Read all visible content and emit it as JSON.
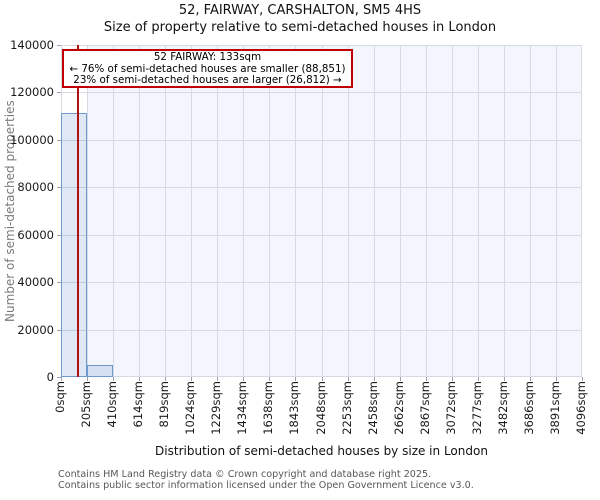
{
  "chart_data": {
    "type": "bar",
    "title": "52, FAIRWAY, CARSHALTON, SM5 4HS",
    "subtitle": "Size of property relative to semi-detached houses in London",
    "xlabel": "Distribution of semi-detached houses by size in London",
    "ylabel": "Number of semi-detached properties",
    "categories": [
      "0sqm",
      "205sqm",
      "410sqm",
      "614sqm",
      "819sqm",
      "1024sqm",
      "1229sqm",
      "1434sqm",
      "1638sqm",
      "1843sqm",
      "2048sqm",
      "2253sqm",
      "2458sqm",
      "2662sqm",
      "2867sqm",
      "3072sqm",
      "3277sqm",
      "3482sqm",
      "3686sqm",
      "3891sqm",
      "4096sqm"
    ],
    "values": [
      111400,
      5000,
      0,
      0,
      0,
      0,
      0,
      0,
      0,
      0,
      0,
      0,
      0,
      0,
      0,
      0,
      0,
      0,
      0,
      0
    ],
    "ylim": [
      0,
      140000
    ],
    "xlim_sqm": [
      0,
      4096
    ],
    "yticks": [
      "0",
      "20000",
      "40000",
      "60000",
      "80000",
      "100000",
      "120000",
      "140000"
    ],
    "grid": true,
    "legend": "none",
    "marker": {
      "label": "52 FAIRWAY",
      "value_sqm": 133,
      "highlight_bin_background": "#ffffff"
    },
    "annotation": {
      "line1": "52 FAIRWAY: 133sqm",
      "line2": "← 76% of semi-detached houses are smaller (88,851)",
      "line3": "23% of semi-detached houses are larger (26,812) →"
    },
    "colors": {
      "bar_fill": "rgba(110,150,205,0.22)",
      "bar_edge": "#6d99cc",
      "marker_line": "#b01212",
      "annotation_border": "#c00000",
      "plot_background": "#f3f6fc",
      "grid": "#d6dae3"
    }
  },
  "footer": {
    "line1": "Contains HM Land Registry data © Crown copyright and database right 2025.",
    "line2": "Contains public sector information licensed under the Open Government Licence v3.0."
  }
}
